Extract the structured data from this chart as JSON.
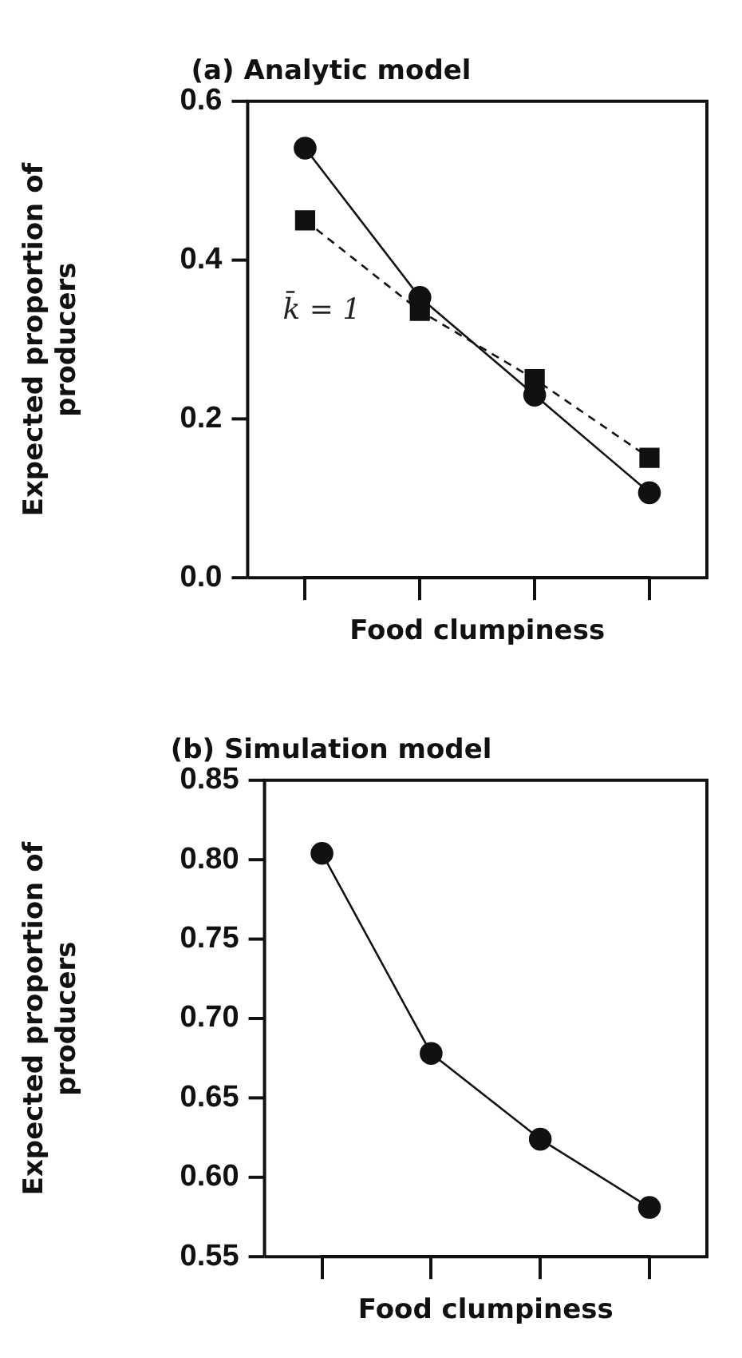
{
  "chart_data": [
    {
      "type": "line",
      "title": "(a) Analytic model",
      "xlabel": "Food clumpiness",
      "ylabel": "Expected proportion of producers",
      "categories": [
        null,
        null,
        null,
        null
      ],
      "series": [
        {
          "color": "#111111",
          "values": [
            0.541,
            0.353,
            0.23,
            0.107
          ],
          "marker": "circle",
          "line_style": "solid"
        },
        {
          "color": "#111111",
          "values": [
            0.45,
            0.336,
            0.25,
            0.151
          ],
          "marker": "square",
          "line_style": "dashed"
        }
      ],
      "ylim": [
        0,
        0.6
      ],
      "yticks": [
        {
          "value": 0,
          "label": "0.0"
        },
        {
          "value": 0.2,
          "label": "0.2"
        },
        {
          "value": 0.4,
          "label": "0.4"
        },
        {
          "value": 0.6,
          "label": "0.6"
        }
      ],
      "annotations": [
        "k̄ = 1"
      ],
      "tick_labels": "y",
      "grid": false,
      "legend": false
    },
    {
      "type": "line",
      "title": "(b) Simulation model",
      "xlabel": "Food clumpiness",
      "ylabel": "Expected proportion of producers",
      "categories": [
        null,
        null,
        null,
        null
      ],
      "series": [
        {
          "color": "#111111",
          "values": [
            0.804,
            0.678,
            0.624,
            0.581
          ],
          "marker": "circle",
          "line_style": "solid"
        }
      ],
      "ylim": [
        0.55,
        0.85
      ],
      "yticks": [
        {
          "value": 0.55,
          "label": "0.55"
        },
        {
          "value": 0.6,
          "label": "0.60"
        },
        {
          "value": 0.65,
          "label": "0.65"
        },
        {
          "value": 0.7,
          "label": "0.70"
        },
        {
          "value": 0.75,
          "label": "0.75"
        },
        {
          "value": 0.8,
          "label": "0.80"
        },
        {
          "value": 0.85,
          "label": "0.85"
        }
      ],
      "tick_labels": "y",
      "grid": false,
      "legend": false
    }
  ]
}
